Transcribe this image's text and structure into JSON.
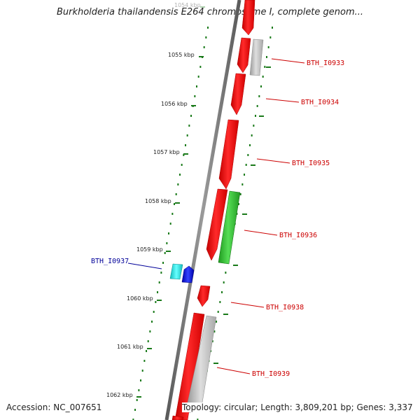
{
  "title": "Burkholderia thailandensis E264 chromosome I, complete genom...",
  "footer": {
    "accession": "Accession: NC_007651",
    "topology": "Topology: circular; Length: 3,809,201 bp; Genes: 3,337"
  },
  "colors": {
    "backbone": "#808080",
    "tick": "#1a7a1a",
    "forward_gene": "#ee1111",
    "gray_gene": "#b8b8b8",
    "green_gene": "#33bb33",
    "cyan_gene": "#22dddd",
    "blue_gene": "#1111ee",
    "label_red": "#cc0000",
    "label_blue": "#000099"
  },
  "kbp_ticks": [
    {
      "label": "1054 kbp",
      "faded": true
    },
    {
      "label": "1055 kbp"
    },
    {
      "label": "1056 kbp"
    },
    {
      "label": "1057 kbp"
    },
    {
      "label": "1058 kbp"
    },
    {
      "label": "1059 kbp"
    },
    {
      "label": "1060 kbp"
    },
    {
      "label": "1061 kbp"
    },
    {
      "label": "1062 kbp"
    }
  ],
  "gene_labels": [
    {
      "text": "BTH_I0933",
      "color": "red"
    },
    {
      "text": "BTH_I0934",
      "color": "red"
    },
    {
      "text": "BTH_I0935",
      "color": "red"
    },
    {
      "text": "BTH_I0936",
      "color": "red"
    },
    {
      "text": "BTH_I0937",
      "color": "blue"
    },
    {
      "text": "BTH_I0938",
      "color": "red"
    },
    {
      "text": "BTH_I0939",
      "color": "red"
    }
  ]
}
